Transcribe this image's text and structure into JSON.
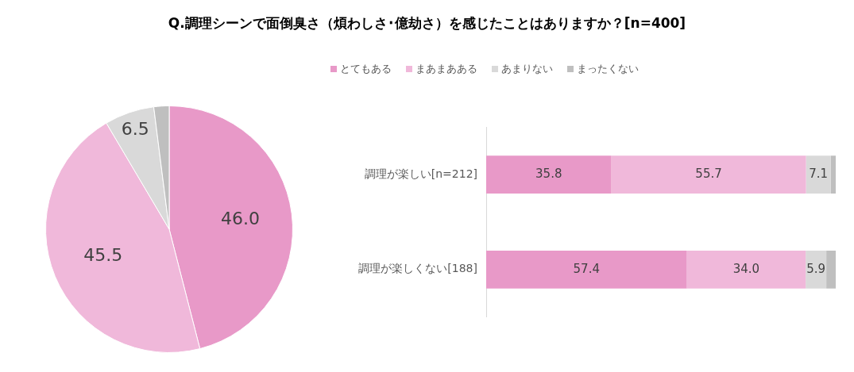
{
  "chart_data": [
    {
      "type": "pie",
      "legend": "top",
      "title": "Q.調理シーンで面倒臭さ（煩わしさ･億劫さ）を感じたことはありますか？[n=400]",
      "categories": [
        "とてもある",
        "まあまあある",
        "あまりない",
        "まったくない"
      ],
      "values": [
        46.0,
        45.5,
        6.5,
        2.0
      ],
      "colors": [
        "#e899c8",
        "#f0b8da",
        "#d9d9d9",
        "#bfbfbf"
      ],
      "value_labels": [
        "46.0",
        "45.5",
        "6.5",
        null
      ]
    },
    {
      "type": "bar",
      "orientation": "horizontal",
      "stacked": true,
      "tick_labels": "y",
      "xlim": [
        0,
        100
      ],
      "categories": [
        "調理が楽しい[n=212]",
        "調理が楽しくない[188]"
      ],
      "series": [
        {
          "color": "#e899c8",
          "values": [
            35.8,
            57.4
          ],
          "value_labels": [
            "35.8",
            "57.4"
          ]
        },
        {
          "color": "#f0b8da",
          "values": [
            55.7,
            34.0
          ],
          "value_labels": [
            "55.7",
            "34.0"
          ]
        },
        {
          "color": "#d9d9d9",
          "values": [
            7.1,
            5.9
          ],
          "value_labels": [
            "7.1",
            "5.9"
          ]
        },
        {
          "color": "#bfbfbf",
          "values": [
            1.4,
            2.7
          ],
          "value_labels": [
            null,
            null
          ]
        }
      ]
    }
  ]
}
